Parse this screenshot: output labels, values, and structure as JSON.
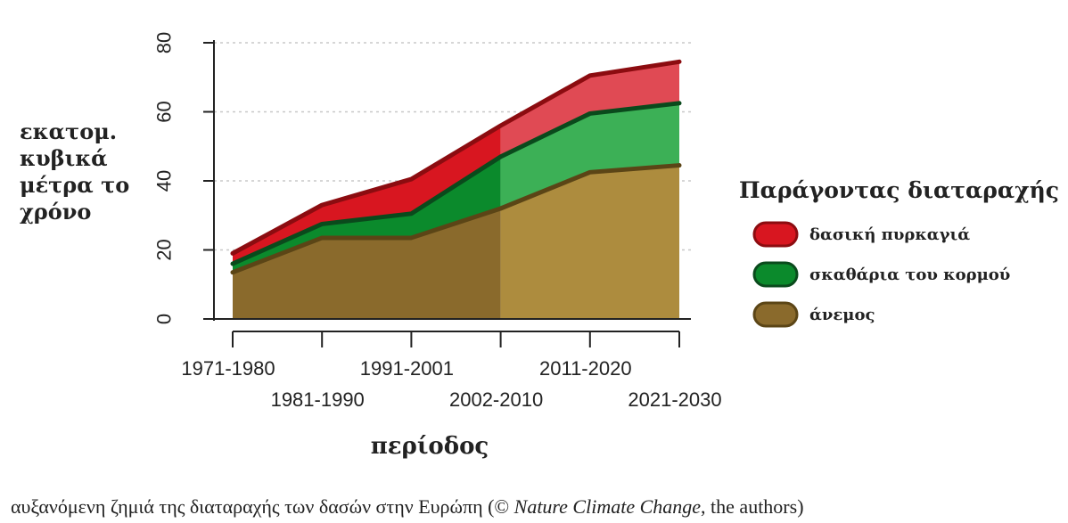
{
  "chart_data": {
    "type": "area",
    "stacked": true,
    "ylabel": [
      "εκατομ.",
      "κυβικά",
      "μέτρα το",
      "χρόνο"
    ],
    "xlabel": "περίοδος",
    "ylim": [
      0,
      80
    ],
    "yticks": [
      0,
      20,
      40,
      60,
      80
    ],
    "grid": "horizontal dotted",
    "categories": [
      "1971-1980",
      "1981-1990",
      "1991-2001",
      "2002-2010",
      "2011-2020",
      "2021-2030"
    ],
    "projection_from": "2002-2010",
    "series": [
      {
        "name": "άνεμος",
        "color": "#8a6a2c",
        "color_projection": "#ad8c3e",
        "values": [
          13.5,
          23.5,
          23.5,
          32,
          42.5,
          44.5
        ]
      },
      {
        "name": "σκαθάρια του κορμού",
        "color": "#0b8a2c",
        "color_projection": "#3cb056",
        "values": [
          2.5,
          4,
          7,
          15,
          17,
          18
        ]
      },
      {
        "name": "δασική πυρκαγιά",
        "color": "#d81620",
        "color_projection": "#e04a54",
        "values": [
          3,
          5.5,
          10,
          9,
          11,
          12
        ]
      }
    ],
    "legend": {
      "title": "Παράγοντας διαταραχής",
      "position": "right"
    }
  },
  "caption": {
    "before": "αυξανόμενη ζημιά της διαταραχής των δασών στην Ευρώπη (© ",
    "journal": "Nature Climate Change",
    "after": ", the authors)"
  }
}
